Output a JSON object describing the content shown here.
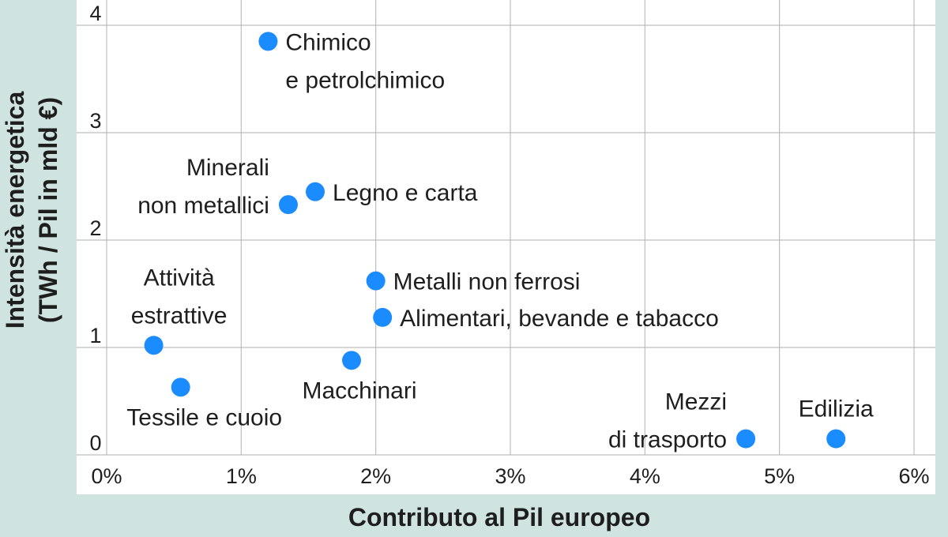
{
  "chart_data": {
    "type": "scatter",
    "title": "",
    "xlabel": "Contributo al Pil europeo",
    "ylabel": [
      "Intensità energetica",
      "(TWh / Pil in mld €)"
    ],
    "xlim": [
      0,
      6
    ],
    "ylim": [
      0,
      4
    ],
    "x_unit": "%",
    "grid": true,
    "x_ticks": [
      {
        "value": 0,
        "label": "0%"
      },
      {
        "value": 1,
        "label": "1%"
      },
      {
        "value": 2,
        "label": "2%"
      },
      {
        "value": 3,
        "label": "3%"
      },
      {
        "value": 4,
        "label": "4%"
      },
      {
        "value": 5,
        "label": "5%"
      },
      {
        "value": 6,
        "label": "6%"
      }
    ],
    "y_ticks": [
      {
        "value": 0,
        "label": "0"
      },
      {
        "value": 1,
        "label": "1"
      },
      {
        "value": 2,
        "label": "2"
      },
      {
        "value": 3,
        "label": "3"
      },
      {
        "value": 4,
        "label": "4"
      }
    ],
    "points": [
      {
        "label": [
          "Chimico",
          "e petrolchimico"
        ],
        "x": 1.2,
        "y": 3.85,
        "label_pos": "right"
      },
      {
        "label": [
          "Minerali",
          "non metallici"
        ],
        "x": 1.35,
        "y": 2.33,
        "label_pos": "left"
      },
      {
        "label": [
          "Legno e carta"
        ],
        "x": 1.55,
        "y": 2.45,
        "label_pos": "right"
      },
      {
        "label": [
          "Metalli non ferrosi"
        ],
        "x": 2.0,
        "y": 1.62,
        "label_pos": "right"
      },
      {
        "label": [
          "Alimentari, bevande e tabacco"
        ],
        "x": 2.05,
        "y": 1.28,
        "label_pos": "right"
      },
      {
        "label": [
          "Attività",
          "estrattive"
        ],
        "x": 0.35,
        "y": 1.02,
        "label_pos": "above"
      },
      {
        "label": [
          "Macchinari"
        ],
        "x": 1.82,
        "y": 0.88,
        "label_pos": "below"
      },
      {
        "label": [
          "Tessile e cuoio"
        ],
        "x": 0.55,
        "y": 0.63,
        "label_pos": "below"
      },
      {
        "label": [
          "Mezzi",
          "di trasporto"
        ],
        "x": 4.75,
        "y": 0.15,
        "label_pos": "left"
      },
      {
        "label": [
          "Edilizia"
        ],
        "x": 5.42,
        "y": 0.15,
        "label_pos": "above"
      }
    ],
    "colors": {
      "marker": "#1a8cff",
      "background": "#cfe3e1",
      "plot_bg": "#ffffff",
      "grid": "#bdbdbd"
    }
  }
}
